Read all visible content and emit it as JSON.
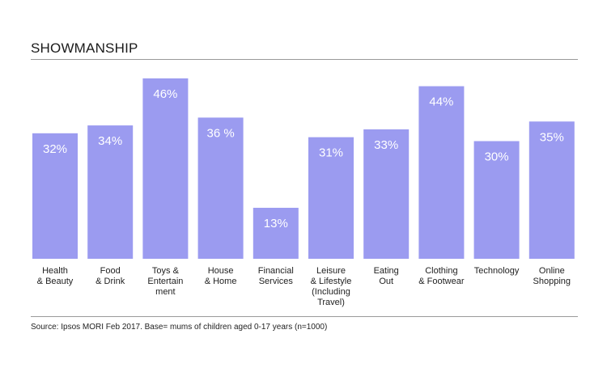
{
  "title": "SHOWMANSHIP",
  "source": "Source: Ipsos MORI Feb 2017. Base= mums of children aged 0-17 years (n=1000)",
  "colors": {
    "bar": "#9b9bf0",
    "value_label": "#ffffff",
    "axis_label": "#222222"
  },
  "chart_data": {
    "type": "bar",
    "title": "SHOWMANSHIP",
    "categories": [
      [
        "Health",
        "& Beauty"
      ],
      [
        "Food",
        "& Drink"
      ],
      [
        "Toys &",
        "Entertain",
        "ment"
      ],
      [
        "House",
        "& Home"
      ],
      [
        "Financial",
        "Services"
      ],
      [
        "Leisure",
        "& Lifestyle",
        "(Including",
        "Travel)"
      ],
      [
        "Eating",
        "Out"
      ],
      [
        "Clothing",
        "& Footwear"
      ],
      [
        "Technology"
      ],
      [
        "Online",
        "Shopping"
      ]
    ],
    "values": [
      32,
      34,
      46,
      36,
      13,
      31,
      33,
      44,
      30,
      35
    ],
    "data_labels": [
      "32%",
      "34%",
      "46%",
      "36 %",
      "13%",
      "31%",
      "33%",
      "44%",
      "30%",
      "35%"
    ],
    "ylim": [
      0,
      50
    ],
    "grid": false,
    "legend": "none"
  }
}
